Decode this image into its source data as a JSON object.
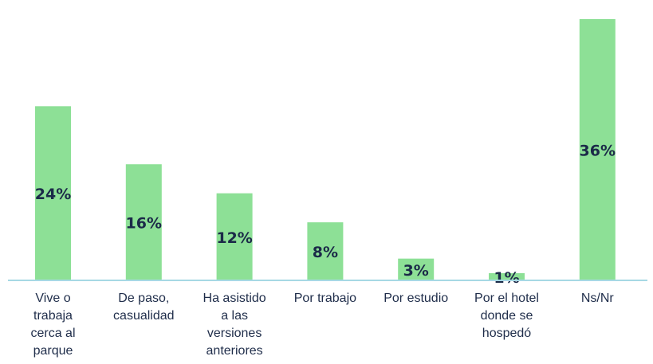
{
  "chart_data": {
    "type": "bar",
    "categories": [
      "Vive o trabaja cerca al parque",
      "De paso, casualidad",
      "Ha asistido a las versiones anteriores",
      "Por trabajo",
      "Por estudio",
      "Por el hotel donde se hospedó",
      "Ns/Nr"
    ],
    "values": [
      24,
      16,
      12,
      8,
      3,
      1,
      36
    ],
    "value_labels": [
      "24%",
      "16%",
      "12%",
      "8%",
      "3%",
      "1%",
      "36%"
    ],
    "color": "#8de096"
  }
}
